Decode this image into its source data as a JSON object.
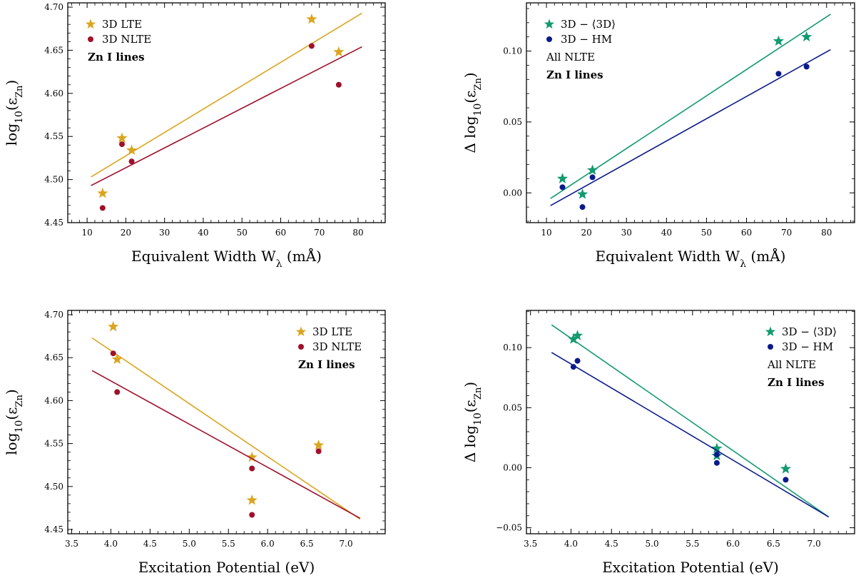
{
  "chart_data": [
    {
      "id": "tl",
      "type": "scatter",
      "xlabel": "Equivalent Width W_λ (mÅ)",
      "ylabel": "log10(εZn)",
      "xlim": [
        5,
        87
      ],
      "ylim": [
        4.45,
        4.705
      ],
      "xticks": [
        10,
        20,
        30,
        40,
        50,
        60,
        70,
        80
      ],
      "yticks": [
        4.45,
        4.5,
        4.55,
        4.6,
        4.65,
        4.7
      ],
      "ytick_decimals": 2,
      "legend_position": "top-left",
      "legend_notes": [],
      "legend_bold_note": "Zn I lines",
      "series": [
        {
          "name": "3D LTE",
          "marker": "star",
          "color": "#DAA520",
          "x": [
            14.0,
            19.0,
            21.5,
            68.0,
            75.0
          ],
          "y": [
            4.484,
            4.548,
            4.534,
            4.686,
            4.648
          ],
          "fit": {
            "x": [
              11,
              81
            ],
            "y": [
              4.503,
              4.693
            ]
          }
        },
        {
          "name": "3D NLTE",
          "marker": "circle",
          "color": "#A0102A",
          "x": [
            14.0,
            19.0,
            21.5,
            68.0,
            75.0
          ],
          "y": [
            4.467,
            4.541,
            4.521,
            4.655,
            4.61
          ],
          "fit": {
            "x": [
              11,
              81
            ],
            "y": [
              4.493,
              4.654
            ]
          }
        }
      ]
    },
    {
      "id": "tr",
      "type": "scatter",
      "xlabel": "Equivalent Width W_λ (mÅ)",
      "ylabel": "Δ log10(εZn)",
      "xlim": [
        5,
        87
      ],
      "ylim": [
        -0.021,
        0.134
      ],
      "xticks": [
        10,
        20,
        30,
        40,
        50,
        60,
        70,
        80
      ],
      "yticks": [
        0.0,
        0.05,
        0.1
      ],
      "ytick_decimals": 2,
      "legend_position": "top-left",
      "legend_notes": [
        "All NLTE"
      ],
      "legend_bold_note": "Zn I lines",
      "series": [
        {
          "name": "3D − ⟨3D⟩",
          "marker": "star",
          "color": "#119A6E",
          "x": [
            14.0,
            19.0,
            21.5,
            68.0,
            75.0
          ],
          "y": [
            0.01,
            -0.001,
            0.016,
            0.107,
            0.11
          ],
          "fit": {
            "x": [
              11,
              81
            ],
            "y": [
              -0.004,
              0.126
            ]
          }
        },
        {
          "name": "3D − HM",
          "marker": "circle",
          "color": "#0A1A8A",
          "x": [
            14.0,
            19.0,
            21.5,
            68.0,
            75.0
          ],
          "y": [
            0.004,
            -0.01,
            0.011,
            0.084,
            0.089
          ],
          "fit": {
            "x": [
              11,
              81
            ],
            "y": [
              -0.009,
              0.101
            ]
          }
        }
      ]
    },
    {
      "id": "bl",
      "type": "scatter",
      "xlabel": "Excitation Potential (eV)",
      "ylabel": "log10(εZn)",
      "xlim": [
        3.45,
        7.5
      ],
      "ylim": [
        4.445,
        4.705
      ],
      "xticks": [
        3.5,
        4.0,
        4.5,
        5.0,
        5.5,
        6.0,
        6.5,
        7.0
      ],
      "yticks": [
        4.45,
        4.5,
        4.55,
        4.6,
        4.65,
        4.7
      ],
      "ytick_decimals": 2,
      "legend_position": "top-right",
      "legend_notes": [],
      "legend_bold_note": "Zn I lines",
      "series": [
        {
          "name": "3D LTE",
          "marker": "star",
          "color": "#DAA520",
          "x": [
            4.03,
            4.08,
            5.8,
            5.8,
            6.65
          ],
          "y": [
            4.686,
            4.648,
            4.534,
            4.484,
            4.548
          ],
          "fit": {
            "x": [
              3.76,
              7.18
            ],
            "y": [
              4.673,
              4.462
            ]
          }
        },
        {
          "name": "3D NLTE",
          "marker": "circle",
          "color": "#A0102A",
          "x": [
            4.03,
            4.08,
            5.8,
            5.8,
            6.65
          ],
          "y": [
            4.655,
            4.61,
            4.521,
            4.467,
            4.541
          ],
          "fit": {
            "x": [
              3.76,
              7.18
            ],
            "y": [
              4.635,
              4.463
            ]
          }
        }
      ]
    },
    {
      "id": "br",
      "type": "scatter",
      "xlabel": "Excitation Potential (eV)",
      "ylabel": "Δ log10(εZn)",
      "xlim": [
        3.45,
        7.5
      ],
      "ylim": [
        -0.055,
        0.131
      ],
      "xticks": [
        3.5,
        4.0,
        4.5,
        5.0,
        5.5,
        6.0,
        6.5,
        7.0
      ],
      "yticks": [
        -0.05,
        0.0,
        0.05,
        0.1
      ],
      "ytick_decimals": 2,
      "legend_position": "top-right",
      "legend_notes": [
        "All NLTE"
      ],
      "legend_bold_note": "Zn I lines",
      "series": [
        {
          "name": "3D − ⟨3D⟩",
          "marker": "star",
          "color": "#119A6E",
          "x": [
            4.03,
            4.08,
            5.8,
            5.8,
            6.65
          ],
          "y": [
            0.107,
            0.11,
            0.016,
            0.01,
            -0.001
          ],
          "fit": {
            "x": [
              3.76,
              7.18
            ],
            "y": [
              0.119,
              -0.041
            ]
          }
        },
        {
          "name": "3D − HM",
          "marker": "circle",
          "color": "#0A1A8A",
          "x": [
            4.03,
            4.08,
            5.8,
            5.8,
            6.65
          ],
          "y": [
            0.084,
            0.089,
            0.011,
            0.004,
            -0.01
          ],
          "fit": {
            "x": [
              3.76,
              7.18
            ],
            "y": [
              0.096,
              -0.041
            ]
          }
        }
      ]
    }
  ]
}
